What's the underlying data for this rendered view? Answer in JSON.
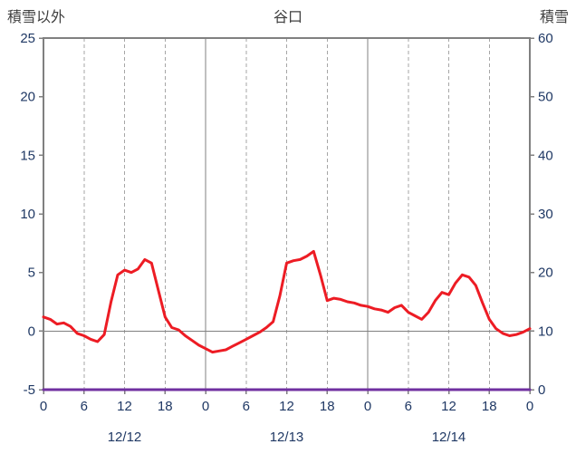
{
  "chart_data": {
    "type": "line",
    "title": "谷口",
    "x_axis": {
      "unit": "hour",
      "span": 72,
      "tick_hours": [
        0,
        6,
        12,
        18,
        24,
        30,
        36,
        42,
        48,
        54,
        60,
        66,
        72
      ],
      "tick_labels": [
        "0",
        "6",
        "12",
        "18",
        "0",
        "6",
        "12",
        "18",
        "0",
        "6",
        "12",
        "18",
        "0"
      ],
      "day_boundaries": [
        24,
        48
      ],
      "day_labels": [
        {
          "label": "12/12",
          "center_hour": 12
        },
        {
          "label": "12/13",
          "center_hour": 36
        },
        {
          "label": "12/14",
          "center_hour": 60
        }
      ]
    },
    "left_axis": {
      "label": "積雪以外",
      "min": -5,
      "max": 25,
      "ticks": [
        -5,
        0,
        5,
        10,
        15,
        20,
        25
      ]
    },
    "right_axis": {
      "label": "積雪",
      "min": 0,
      "max": 60,
      "ticks": [
        0,
        10,
        20,
        30,
        40,
        50,
        60
      ]
    },
    "grid": {
      "vertical_dashed": true,
      "horizontal_zero_line": true
    },
    "series": [
      {
        "name": "積雪以外",
        "axis": "left",
        "color": "#ed1c24",
        "values": [
          1.2,
          1.0,
          0.6,
          0.7,
          0.4,
          -0.2,
          -0.4,
          -0.7,
          -0.9,
          -0.3,
          2.5,
          4.8,
          5.2,
          5.0,
          5.3,
          6.1,
          5.8,
          3.5,
          1.2,
          0.3,
          0.1,
          -0.4,
          -0.8,
          -1.2,
          -1.5,
          -1.8,
          -1.7,
          -1.6,
          -1.3,
          -1.0,
          -0.7,
          -0.4,
          -0.1,
          0.3,
          0.8,
          3.0,
          5.8,
          6.0,
          6.1,
          6.4,
          6.8,
          4.8,
          2.6,
          2.8,
          2.7,
          2.5,
          2.4,
          2.2,
          2.1,
          1.9,
          1.8,
          1.6,
          2.0,
          2.2,
          1.6,
          1.3,
          1.0,
          1.6,
          2.6,
          3.3,
          3.1,
          4.1,
          4.8,
          4.6,
          3.9,
          2.4,
          1.0,
          0.2,
          -0.2,
          -0.4,
          -0.3,
          -0.1,
          0.2
        ]
      },
      {
        "name": "積雪",
        "axis": "right",
        "color": "#7030a0",
        "x": [
          0,
          72
        ],
        "values": [
          0,
          0
        ]
      }
    ],
    "colors": {
      "border": "#808080",
      "gridline": "#a6a6a6",
      "zero_line": "#808080",
      "tick_text": "#1f3864",
      "title_text": "#3f3f3f"
    }
  }
}
